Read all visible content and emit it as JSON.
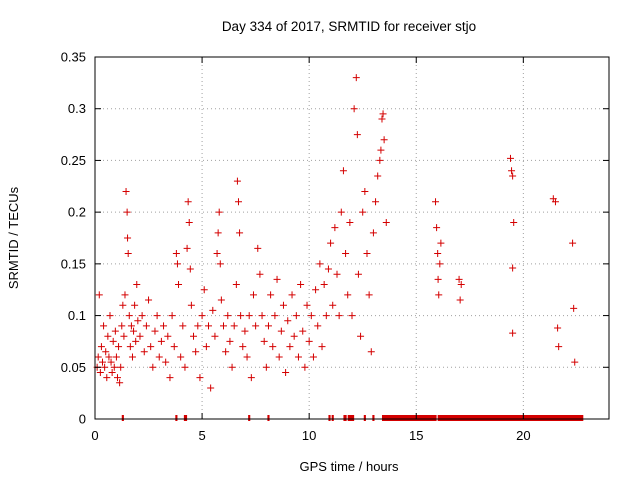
{
  "chart_data": {
    "type": "scatter",
    "title": "Day 334 of 2017, SRMTID for receiver stjo",
    "xlabel": "GPS time / hours",
    "ylabel": "SRMTID / TECUs",
    "xlim": [
      0,
      24
    ],
    "ylim": [
      0,
      0.35
    ],
    "x_ticks": [
      0,
      5,
      10,
      15,
      20
    ],
    "x_tick_labels": [
      "0",
      "5",
      "10",
      "15",
      "20"
    ],
    "y_ticks": [
      0,
      0.05,
      0.1,
      0.15,
      0.2,
      0.25,
      0.3,
      0.35
    ],
    "y_tick_labels": [
      "0",
      "0.05",
      "0.1",
      "0.15",
      "0.2",
      "0.25",
      "0.3",
      "0.35"
    ],
    "grid": true,
    "marker": "plus",
    "color": "#d40000",
    "series": [
      {
        "points": [
          [
            0.1,
            0.05
          ],
          [
            0.15,
            0.06
          ],
          [
            0.2,
            0.12
          ],
          [
            0.25,
            0.045
          ],
          [
            0.3,
            0.07
          ],
          [
            0.35,
            0.055
          ],
          [
            0.4,
            0.09
          ],
          [
            0.45,
            0.05
          ],
          [
            0.5,
            0.065
          ],
          [
            0.55,
            0.04
          ],
          [
            0.6,
            0.08
          ],
          [
            0.65,
            0.06
          ],
          [
            0.7,
            0.1
          ],
          [
            0.75,
            0.055
          ],
          [
            0.8,
            0.045
          ],
          [
            0.85,
            0.075
          ],
          [
            0.9,
            0.05
          ],
          [
            0.95,
            0.085
          ],
          [
            1.0,
            0.06
          ],
          [
            1.05,
            0.04
          ],
          [
            1.1,
            0.07
          ],
          [
            1.15,
            0.035
          ],
          [
            1.2,
            0.05
          ],
          [
            1.25,
            0.09
          ],
          [
            1.3,
            0.11
          ],
          [
            1.35,
            0.08
          ],
          [
            1.4,
            0.12
          ],
          [
            1.45,
            0.22
          ],
          [
            1.5,
            0.2
          ],
          [
            1.52,
            0.175
          ],
          [
            1.55,
            0.16
          ],
          [
            1.6,
            0.1
          ],
          [
            1.65,
            0.07
          ],
          [
            1.7,
            0.09
          ],
          [
            1.75,
            0.06
          ],
          [
            1.8,
            0.085
          ],
          [
            1.85,
            0.11
          ],
          [
            1.9,
            0.075
          ],
          [
            1.95,
            0.13
          ],
          [
            2.0,
            0.095
          ],
          [
            2.1,
            0.08
          ],
          [
            2.2,
            0.1
          ],
          [
            2.3,
            0.065
          ],
          [
            2.4,
            0.09
          ],
          [
            2.5,
            0.115
          ],
          [
            2.6,
            0.07
          ],
          [
            2.7,
            0.05
          ],
          [
            2.8,
            0.085
          ],
          [
            2.9,
            0.1
          ],
          [
            3.0,
            0.06
          ],
          [
            3.1,
            0.075
          ],
          [
            3.2,
            0.09
          ],
          [
            3.3,
            0.055
          ],
          [
            3.4,
            0.08
          ],
          [
            3.5,
            0.04
          ],
          [
            3.6,
            0.1
          ],
          [
            3.7,
            0.07
          ],
          [
            3.8,
            0.16
          ],
          [
            3.85,
            0.15
          ],
          [
            3.9,
            0.13
          ],
          [
            4.0,
            0.06
          ],
          [
            4.1,
            0.09
          ],
          [
            4.2,
            0.05
          ],
          [
            4.3,
            0.165
          ],
          [
            4.35,
            0.21
          ],
          [
            4.4,
            0.19
          ],
          [
            4.45,
            0.145
          ],
          [
            4.5,
            0.11
          ],
          [
            4.6,
            0.08
          ],
          [
            4.7,
            0.065
          ],
          [
            4.8,
            0.09
          ],
          [
            4.9,
            0.04
          ],
          [
            5.0,
            0.1
          ],
          [
            5.1,
            0.125
          ],
          [
            5.2,
            0.07
          ],
          [
            5.3,
            0.09
          ],
          [
            5.4,
            0.03
          ],
          [
            5.5,
            0.105
          ],
          [
            5.6,
            0.08
          ],
          [
            5.7,
            0.16
          ],
          [
            5.75,
            0.18
          ],
          [
            5.8,
            0.2
          ],
          [
            5.85,
            0.15
          ],
          [
            5.9,
            0.115
          ],
          [
            6.0,
            0.09
          ],
          [
            6.1,
            0.065
          ],
          [
            6.2,
            0.1
          ],
          [
            6.3,
            0.075
          ],
          [
            6.4,
            0.05
          ],
          [
            6.5,
            0.09
          ],
          [
            6.6,
            0.13
          ],
          [
            6.65,
            0.23
          ],
          [
            6.7,
            0.21
          ],
          [
            6.75,
            0.18
          ],
          [
            6.8,
            0.1
          ],
          [
            6.9,
            0.07
          ],
          [
            7.0,
            0.085
          ],
          [
            7.1,
            0.06
          ],
          [
            7.2,
            0.1
          ],
          [
            7.3,
            0.04
          ],
          [
            7.4,
            0.12
          ],
          [
            7.5,
            0.09
          ],
          [
            7.6,
            0.165
          ],
          [
            7.7,
            0.14
          ],
          [
            7.8,
            0.1
          ],
          [
            7.9,
            0.075
          ],
          [
            8.0,
            0.05
          ],
          [
            8.1,
            0.09
          ],
          [
            8.2,
            0.12
          ],
          [
            8.3,
            0.07
          ],
          [
            8.4,
            0.1
          ],
          [
            8.5,
            0.135
          ],
          [
            8.6,
            0.06
          ],
          [
            8.7,
            0.085
          ],
          [
            8.8,
            0.11
          ],
          [
            8.9,
            0.045
          ],
          [
            9.0,
            0.095
          ],
          [
            9.1,
            0.07
          ],
          [
            9.2,
            0.12
          ],
          [
            9.3,
            0.08
          ],
          [
            9.4,
            0.1
          ],
          [
            9.5,
            0.06
          ],
          [
            9.6,
            0.13
          ],
          [
            9.7,
            0.085
          ],
          [
            9.8,
            0.05
          ],
          [
            9.9,
            0.11
          ],
          [
            10.0,
            0.075
          ],
          [
            10.1,
            0.1
          ],
          [
            10.2,
            0.06
          ],
          [
            10.3,
            0.125
          ],
          [
            10.4,
            0.09
          ],
          [
            10.5,
            0.15
          ],
          [
            10.6,
            0.07
          ],
          [
            10.7,
            0.13
          ],
          [
            10.8,
            0.1
          ],
          [
            10.9,
            0.145
          ],
          [
            11.0,
            0.17
          ],
          [
            11.1,
            0.11
          ],
          [
            11.2,
            0.185
          ],
          [
            11.3,
            0.14
          ],
          [
            11.4,
            0.1
          ],
          [
            11.5,
            0.2
          ],
          [
            11.6,
            0.24
          ],
          [
            11.7,
            0.16
          ],
          [
            11.8,
            0.12
          ],
          [
            11.9,
            0.19
          ],
          [
            12.0,
            0.1
          ],
          [
            12.1,
            0.3
          ],
          [
            12.2,
            0.33
          ],
          [
            12.25,
            0.275
          ],
          [
            12.3,
            0.14
          ],
          [
            12.4,
            0.08
          ],
          [
            12.5,
            0.2
          ],
          [
            12.6,
            0.22
          ],
          [
            12.7,
            0.16
          ],
          [
            12.8,
            0.12
          ],
          [
            12.9,
            0.065
          ],
          [
            13.0,
            0.18
          ],
          [
            13.1,
            0.21
          ],
          [
            13.2,
            0.235
          ],
          [
            13.3,
            0.25
          ],
          [
            13.35,
            0.26
          ],
          [
            13.4,
            0.29
          ],
          [
            13.45,
            0.295
          ],
          [
            13.5,
            0.27
          ],
          [
            13.6,
            0.19
          ],
          [
            15.9,
            0.21
          ],
          [
            15.95,
            0.185
          ],
          [
            16.0,
            0.16
          ],
          [
            16.02,
            0.135
          ],
          [
            16.05,
            0.12
          ],
          [
            16.1,
            0.15
          ],
          [
            16.15,
            0.17
          ],
          [
            17.0,
            0.135
          ],
          [
            17.05,
            0.115
          ],
          [
            17.1,
            0.13
          ],
          [
            19.4,
            0.252
          ],
          [
            19.45,
            0.24
          ],
          [
            19.5,
            0.235
          ],
          [
            19.55,
            0.19
          ],
          [
            19.5,
            0.146
          ],
          [
            19.5,
            0.083
          ],
          [
            21.4,
            0.213
          ],
          [
            21.5,
            0.21
          ],
          [
            21.6,
            0.088
          ],
          [
            21.65,
            0.07
          ],
          [
            22.3,
            0.17
          ],
          [
            22.35,
            0.107
          ],
          [
            22.4,
            0.055
          ]
        ]
      }
    ],
    "zero_value_intervals": [
      [
        1.25,
        1.35
      ],
      [
        3.75,
        3.85
      ],
      [
        4.15,
        4.3
      ],
      [
        7.15,
        7.25
      ],
      [
        8.05,
        8.15
      ],
      [
        10.9,
        11.0
      ],
      [
        11.05,
        11.15
      ],
      [
        11.6,
        11.75
      ],
      [
        11.8,
        12.1
      ],
      [
        12.55,
        12.65
      ],
      [
        12.95,
        13.05
      ],
      [
        13.4,
        15.95
      ],
      [
        16.0,
        22.8
      ]
    ]
  }
}
